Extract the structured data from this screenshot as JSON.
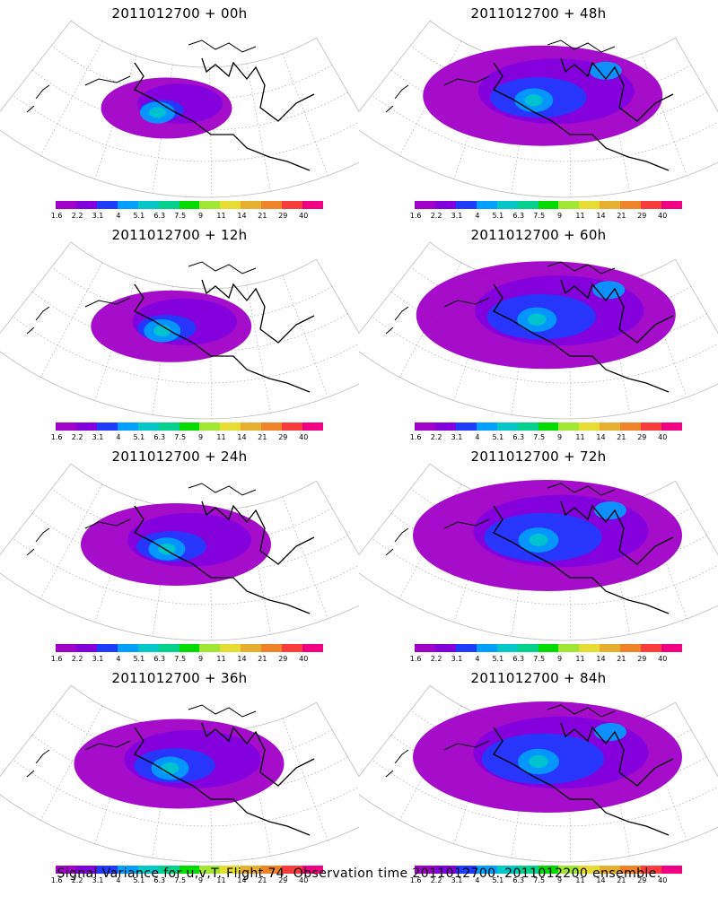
{
  "panels": [
    {
      "title": "2011012700 + 00h",
      "spread": 0.3,
      "intensity": 0.35
    },
    {
      "title": "2011012700 + 48h",
      "spread": 0.85,
      "intensity": 0.55
    },
    {
      "title": "2011012700 + 12h",
      "spread": 0.45,
      "intensity": 0.45
    },
    {
      "title": "2011012700 + 60h",
      "spread": 0.95,
      "intensity": 0.6
    },
    {
      "title": "2011012700 + 24h",
      "spread": 0.6,
      "intensity": 0.45
    },
    {
      "title": "2011012700 + 72h",
      "spread": 1.0,
      "intensity": 0.65
    },
    {
      "title": "2011012700 + 36h",
      "spread": 0.7,
      "intensity": 0.5
    },
    {
      "title": "2011012700 + 84h",
      "spread": 1.0,
      "intensity": 0.7
    }
  ],
  "colorbar": {
    "colors": [
      "#a000c8",
      "#8200dc",
      "#1e3cff",
      "#00a0ff",
      "#00c8c8",
      "#00d28c",
      "#00dc00",
      "#a0e632",
      "#e6dc32",
      "#e6af2d",
      "#f08228",
      "#fa3c3c",
      "#f00082"
    ],
    "labels": [
      "1.6",
      "2.2",
      "3.1",
      "4",
      "5.1",
      "6.3",
      "7.5",
      "9",
      "11",
      "14",
      "21",
      "29",
      "40"
    ]
  },
  "caption": "Signal Variance for u,v,T. Flight 74. Observation time 2011012700. 2011012200 ensemble."
}
